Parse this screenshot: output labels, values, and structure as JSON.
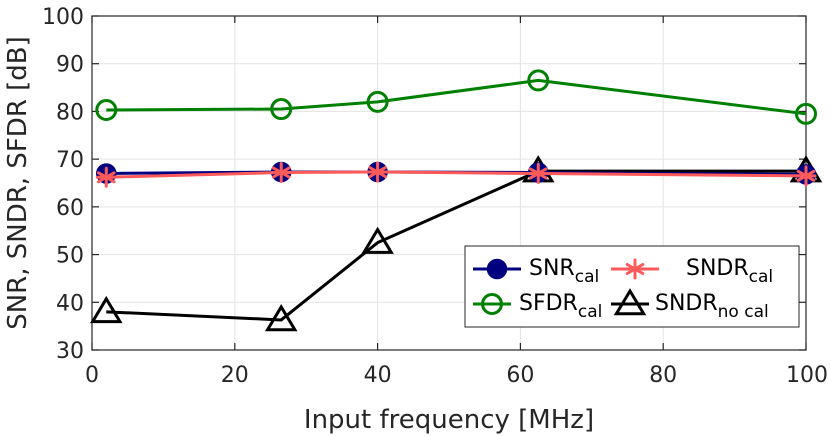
{
  "chart_data": {
    "type": "line",
    "xlabel": "Input frequency [MHz]",
    "ylabel": "SNR, SNDR, SFDR [dB]",
    "xlim": [
      0,
      100
    ],
    "ylim": [
      30,
      100
    ],
    "xticks": [
      0,
      20,
      40,
      60,
      80,
      100
    ],
    "yticks": [
      30,
      40,
      50,
      60,
      70,
      80,
      90,
      100
    ],
    "grid": true,
    "legend_position": "bottom-right",
    "series": [
      {
        "key": "snr",
        "label_main": "SNR",
        "label_sub": "cal",
        "color": "#000080",
        "marker": "filled-circle",
        "x": [
          2,
          26.5,
          40,
          62.5,
          100
        ],
        "y": [
          67,
          67.3,
          67.3,
          67.2,
          66.8
        ]
      },
      {
        "key": "sndr",
        "label_main": "SNDR",
        "label_sub": "cal",
        "color": "#ff5a5a",
        "marker": "asterisk",
        "x": [
          2,
          26.5,
          40,
          62.5,
          100
        ],
        "y": [
          66.2,
          67.2,
          67.3,
          67,
          66.5
        ]
      },
      {
        "key": "sfdr",
        "label_main": "SFDR",
        "label_sub": "cal",
        "color": "#008000",
        "marker": "open-circle",
        "x": [
          2,
          26.5,
          40,
          62.5,
          100
        ],
        "y": [
          80.3,
          80.5,
          82,
          86.5,
          79.5
        ]
      },
      {
        "key": "sndr_nocal",
        "label_main": "SNDR",
        "label_sub": "no cal",
        "color": "#000000",
        "marker": "open-triangle",
        "x": [
          2,
          26.5,
          40,
          62.5,
          100
        ],
        "y": [
          38,
          36.3,
          52.5,
          67.5,
          67.5
        ]
      }
    ]
  }
}
